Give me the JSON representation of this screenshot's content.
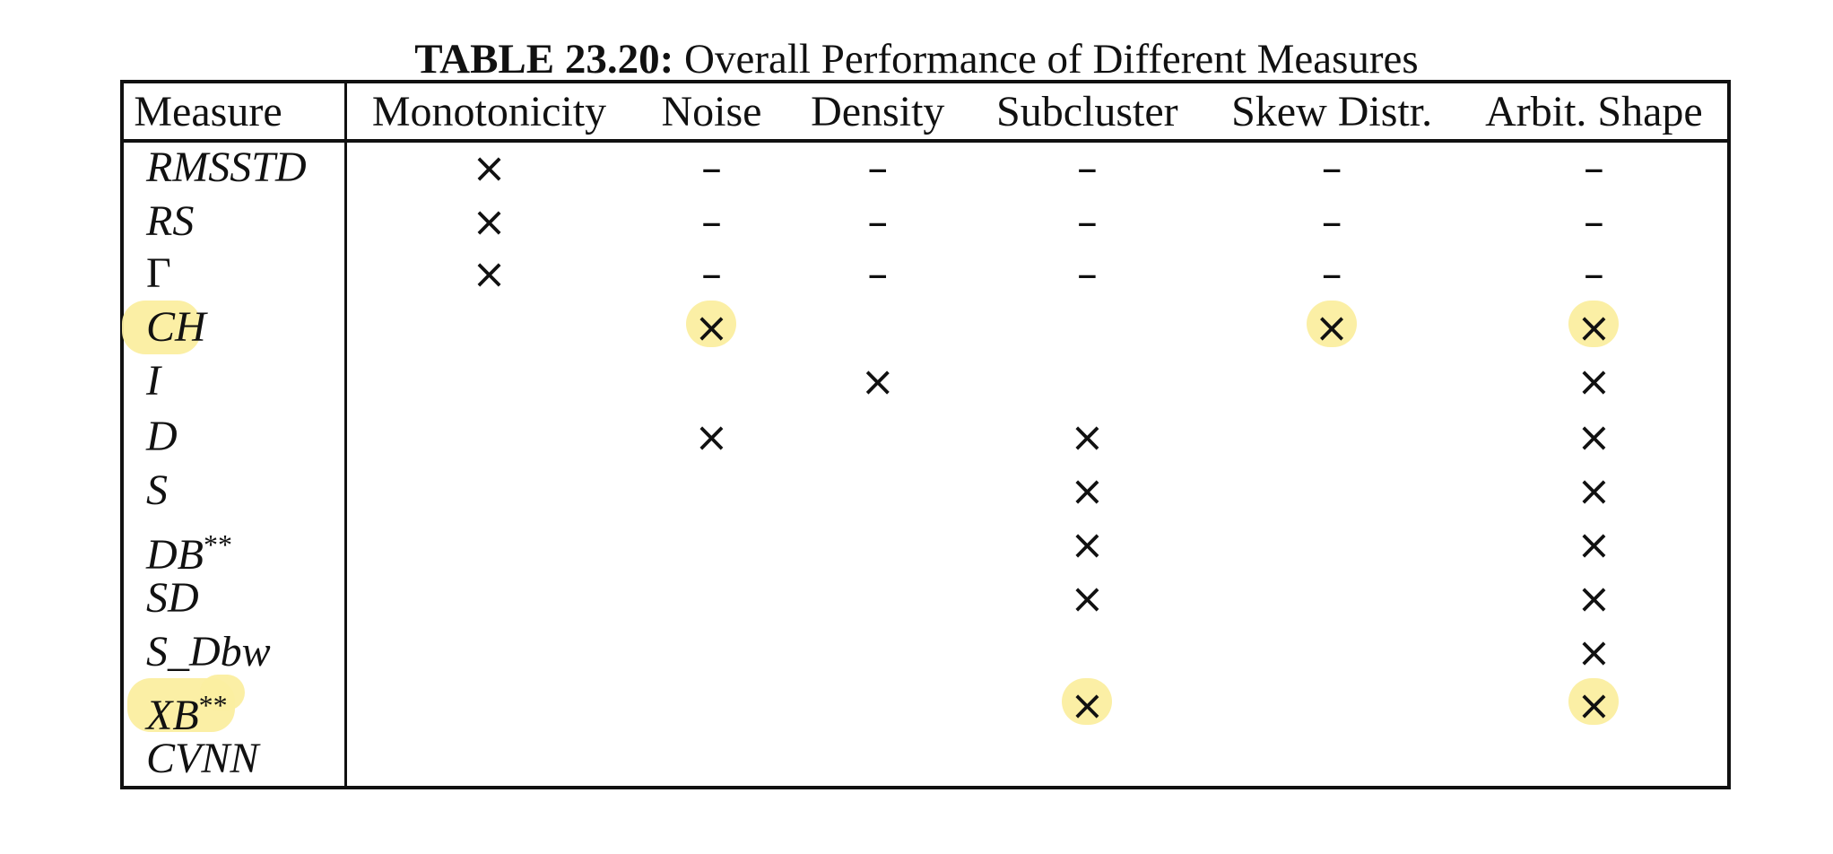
{
  "caption": {
    "label": "TABLE 23.20:",
    "text": " Overall Performance of Different Measures"
  },
  "columns": [
    "Measure",
    "Monotonicity",
    "Noise",
    "Density",
    "Subcluster",
    "Skew Distr.",
    "Arbit. Shape"
  ],
  "rows": [
    {
      "measure": "RMSSTD",
      "sup": "",
      "cells": [
        "×",
        "–",
        "–",
        "–",
        "–",
        "–"
      ]
    },
    {
      "measure": "RS",
      "sup": "",
      "cells": [
        "×",
        "–",
        "–",
        "–",
        "–",
        "–"
      ]
    },
    {
      "measure": "Γ",
      "sup": "",
      "cells": [
        "×",
        "–",
        "–",
        "–",
        "–",
        "–"
      ]
    },
    {
      "measure": "CH",
      "sup": "",
      "cells": [
        "",
        "×",
        "",
        "",
        "×",
        "×"
      ]
    },
    {
      "measure": "I",
      "sup": "",
      "cells": [
        "",
        "",
        "×",
        "",
        "",
        "×"
      ]
    },
    {
      "measure": "D",
      "sup": "",
      "cells": [
        "",
        "×",
        "",
        "×",
        "",
        "×"
      ]
    },
    {
      "measure": "S",
      "sup": "",
      "cells": [
        "",
        "",
        "",
        "×",
        "",
        "×"
      ]
    },
    {
      "measure": "DB",
      "sup": "**",
      "cells": [
        "",
        "",
        "",
        "×",
        "",
        "×"
      ]
    },
    {
      "measure": "SD",
      "sup": "",
      "cells": [
        "",
        "",
        "",
        "×",
        "",
        "×"
      ]
    },
    {
      "measure": "S_Dbw",
      "sup": "",
      "cells": [
        "",
        "",
        "",
        "",
        "",
        "×"
      ]
    },
    {
      "measure": "XB",
      "sup": "**",
      "cells": [
        "",
        "",
        "",
        "×",
        "",
        "×"
      ]
    },
    {
      "measure": "CVNN",
      "sup": "",
      "cells": [
        "",
        "",
        "",
        "",
        "",
        ""
      ]
    }
  ],
  "highlights": [
    {
      "row": 3,
      "col": "label"
    },
    {
      "row": 3,
      "col": 1
    },
    {
      "row": 3,
      "col": 4
    },
    {
      "row": 3,
      "col": 5
    },
    {
      "row": 10,
      "col": "label"
    },
    {
      "row": 10,
      "col": 3
    },
    {
      "row": 10,
      "col": 5
    }
  ],
  "colors": {
    "highlight": "#fbeea0",
    "ink": "#111111"
  }
}
